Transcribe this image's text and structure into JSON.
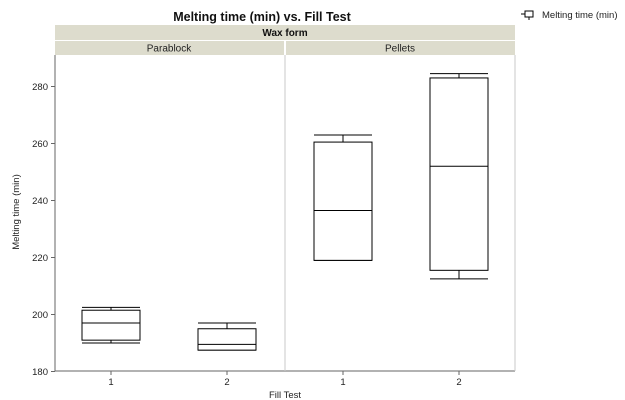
{
  "chart_data": {
    "type": "box",
    "title": "Melting time (min) vs. Fill Test",
    "group_title": "Wax form",
    "panels": [
      "Parablock",
      "Pellets"
    ],
    "xlabel": "Fill Test",
    "ylabel": "Melting time (min)",
    "categories": [
      "1",
      "2"
    ],
    "ylim": [
      180,
      290
    ],
    "yticks": [
      180,
      200,
      220,
      240,
      260,
      280
    ],
    "legend": {
      "label": "Melting time (min)",
      "placement": "top-right"
    },
    "boxes": [
      {
        "panel": "Parablock",
        "category": "1",
        "min": 190,
        "q1": 191,
        "median": 197,
        "q3": 201.5,
        "max": 202.5
      },
      {
        "panel": "Parablock",
        "category": "2",
        "min": 187.5,
        "q1": 187.5,
        "median": 189.5,
        "q3": 195,
        "max": 197
      },
      {
        "panel": "Pellets",
        "category": "1",
        "min": 219,
        "q1": 219,
        "median": 236.5,
        "q3": 260.5,
        "max": 263
      },
      {
        "panel": "Pellets",
        "category": "2",
        "min": 212.5,
        "q1": 215.5,
        "median": 252,
        "q3": 283,
        "max": 284.5
      }
    ],
    "colors": {
      "header": "#dddccd",
      "stroke": "#000000",
      "grid": "#c8c8c8"
    }
  }
}
